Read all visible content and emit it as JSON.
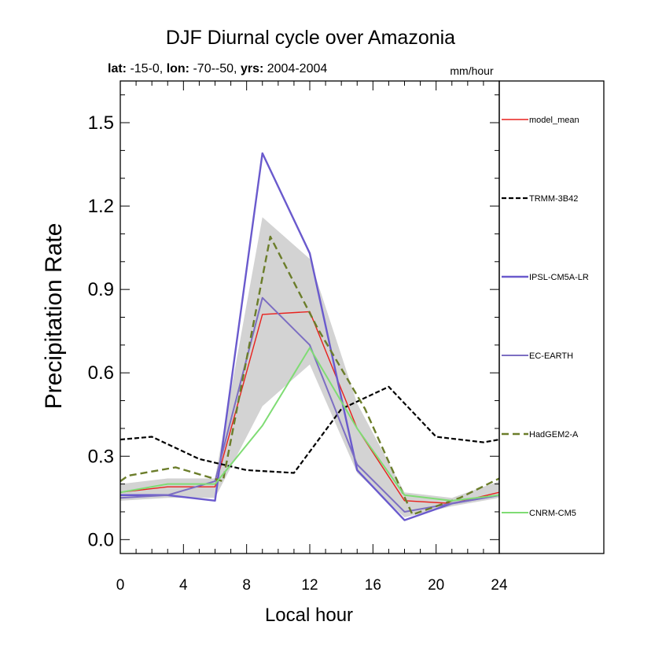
{
  "chart_data": {
    "type": "line",
    "title": "DJF Diurnal cycle over Amazonia",
    "subtitle": {
      "lat_key": "lat:",
      "lat_val": " -15-0, ",
      "lon_key": "lon:",
      "lon_val": " -70--50, ",
      "yrs_key": "yrs:",
      "yrs_val": " 2004-2004"
    },
    "units": "mm/hour",
    "xlabel": "Local hour",
    "ylabel": "Precipitation Rate",
    "xlim": [
      0,
      24
    ],
    "ylim": [
      -0.05,
      1.65
    ],
    "xticks": [
      0,
      4,
      8,
      12,
      16,
      20,
      24
    ],
    "xtick_labels": [
      "0",
      "4",
      "8",
      "12",
      "16",
      "20",
      "24"
    ],
    "yticks": [
      0.0,
      0.3,
      0.6,
      0.9,
      1.2,
      1.5
    ],
    "ytick_labels": [
      "0.0",
      "0.3",
      "0.6",
      "0.9",
      "1.2",
      "1.5"
    ],
    "envelope": {
      "x": [
        0,
        3,
        6,
        9,
        12,
        15,
        18,
        21,
        24
      ],
      "lower": [
        0.14,
        0.15,
        0.15,
        0.48,
        0.63,
        0.24,
        0.08,
        0.12,
        0.15
      ],
      "upper": [
        0.2,
        0.22,
        0.22,
        1.16,
        1.01,
        0.49,
        0.17,
        0.15,
        0.21
      ],
      "color": "#d3d3d3"
    },
    "series": [
      {
        "name": "model_mean",
        "color": "#e8211d",
        "dash": "",
        "width": 1.4,
        "x": [
          0,
          3,
          6,
          9,
          12,
          15,
          18,
          21,
          24
        ],
        "y": [
          0.17,
          0.19,
          0.19,
          0.81,
          0.82,
          0.4,
          0.14,
          0.13,
          0.17
        ]
      },
      {
        "name": "TRMM-3B42",
        "color": "#000000",
        "dash": "6,3",
        "width": 2.2,
        "x": [
          0,
          2,
          5,
          8,
          11,
          14,
          17,
          20,
          23,
          24
        ],
        "y": [
          0.36,
          0.37,
          0.29,
          0.25,
          0.24,
          0.47,
          0.55,
          0.37,
          0.35,
          0.36
        ]
      },
      {
        "name": "IPSL-CM5A-LR",
        "color": "#6a5acd",
        "dash": "",
        "width": 2.4,
        "x": [
          0,
          3,
          6,
          9,
          12,
          15,
          18,
          21,
          24
        ],
        "y": [
          0.16,
          0.16,
          0.14,
          1.39,
          1.03,
          0.25,
          0.07,
          0.13,
          0.16
        ]
      },
      {
        "name": "EC-EARTH",
        "color": "#7c6ec2",
        "dash": "",
        "width": 2.0,
        "x": [
          0,
          3,
          6,
          9,
          12,
          15,
          18,
          21,
          24
        ],
        "y": [
          0.15,
          0.16,
          0.21,
          0.87,
          0.7,
          0.27,
          0.1,
          0.13,
          0.16
        ]
      },
      {
        "name": "HadGEM2-A",
        "color": "#6b7d2a",
        "dash": "9,5",
        "width": 2.4,
        "x": [
          0,
          0.5,
          3.5,
          6.5,
          9.5,
          12.5,
          15.5,
          18.5,
          21.5,
          24
        ],
        "y": [
          0.21,
          0.23,
          0.26,
          0.21,
          1.09,
          0.76,
          0.47,
          0.09,
          0.15,
          0.22
        ]
      },
      {
        "name": "CNRM-CM5",
        "color": "#7fdc74",
        "dash": "",
        "width": 2.0,
        "x": [
          0,
          3,
          6,
          9,
          12,
          15,
          18,
          21,
          24
        ],
        "y": [
          0.17,
          0.2,
          0.2,
          0.41,
          0.69,
          0.4,
          0.16,
          0.14,
          0.16
        ]
      }
    ]
  }
}
